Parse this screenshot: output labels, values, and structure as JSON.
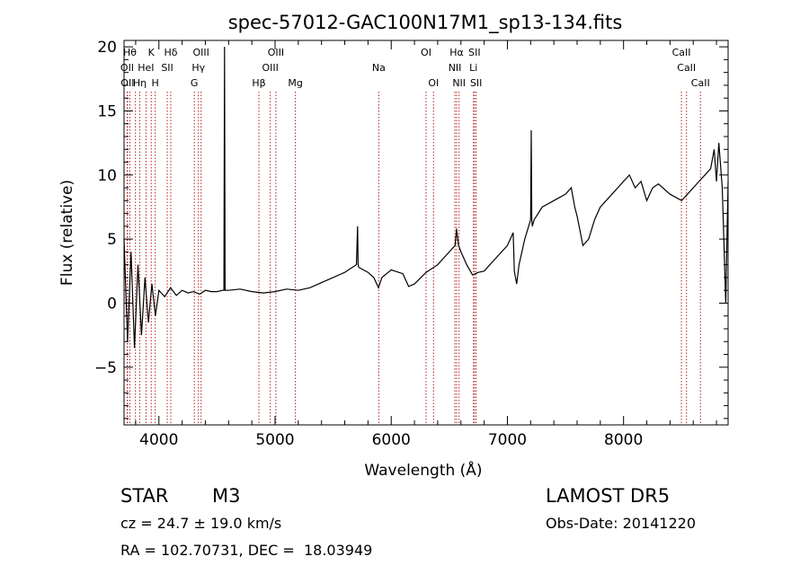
{
  "chart_data": {
    "type": "line",
    "title": "spec-57012-GAC100N17M1_sp13-134.fits",
    "xlabel": "Wavelength (Å)",
    "ylabel": "Flux (relative)",
    "xlim": [
      3700,
      8900
    ],
    "ylim": [
      -9.5,
      20.5
    ],
    "x_ticks": [
      4000,
      5000,
      6000,
      7000,
      8000
    ],
    "y_ticks": [
      -5,
      0,
      5,
      10,
      15,
      20
    ],
    "grid": false,
    "line_color": "#000000",
    "marker_color": "#b22222",
    "series": [
      {
        "x": [
          3700,
          3730,
          3760,
          3790,
          3820,
          3850,
          3880,
          3910,
          3940,
          3970,
          4000,
          4050,
          4100,
          4150,
          4200,
          4250,
          4300,
          4350,
          4400,
          4450,
          4500,
          4550,
          4560,
          4565,
          4570,
          4600,
          4700,
          4800,
          4900,
          5000,
          5100,
          5200,
          5300,
          5400,
          5500,
          5600,
          5650,
          5700,
          5710,
          5715,
          5720,
          5800,
          5850,
          5890,
          5920,
          6000,
          6100,
          6150,
          6200,
          6300,
          6400,
          6500,
          6550,
          6562,
          6580,
          6600,
          6650,
          6700,
          6750,
          6800,
          6900,
          7000,
          7050,
          7060,
          7080,
          7100,
          7150,
          7200,
          7205,
          7210,
          7215,
          7230,
          7300,
          7400,
          7500,
          7550,
          7580,
          7600,
          7650,
          7700,
          7750,
          7800,
          7900,
          8000,
          8050,
          8100,
          8150,
          8200,
          8250,
          8300,
          8400,
          8500,
          8550,
          8600,
          8650,
          8700,
          8750,
          8780,
          8800,
          8820,
          8850,
          8880,
          8900
        ],
        "y": [
          5.0,
          -3.0,
          4.0,
          -3.5,
          3.0,
          -2.5,
          2.0,
          -1.5,
          1.5,
          -1.0,
          1.0,
          0.5,
          1.2,
          0.6,
          1.0,
          0.8,
          0.9,
          0.7,
          1.0,
          0.9,
          0.9,
          1.0,
          1.0,
          20.0,
          1.0,
          1.0,
          1.1,
          0.9,
          0.8,
          0.9,
          1.1,
          1.0,
          1.2,
          1.6,
          2.0,
          2.4,
          2.7,
          3.0,
          6.0,
          3.0,
          2.8,
          2.4,
          2.0,
          1.2,
          2.0,
          2.6,
          2.3,
          1.3,
          1.5,
          2.4,
          3.0,
          4.0,
          4.5,
          5.8,
          4.5,
          4.0,
          3.0,
          2.2,
          2.4,
          2.5,
          3.5,
          4.5,
          5.5,
          2.5,
          1.5,
          3.0,
          5.0,
          6.5,
          13.5,
          6.5,
          6.0,
          6.5,
          7.5,
          8.0,
          8.5,
          9.0,
          7.5,
          6.8,
          4.5,
          5.0,
          6.5,
          7.5,
          8.5,
          9.5,
          10.0,
          9.0,
          9.5,
          8.0,
          9.0,
          9.3,
          8.5,
          8.0,
          8.5,
          9.0,
          9.5,
          10.0,
          10.5,
          12.0,
          9.5,
          12.5,
          9.0,
          0.0,
          9.5
        ]
      }
    ],
    "lines": [
      {
        "x": 3750,
        "tier": 0,
        "label": "Hθ"
      },
      {
        "x": 3727,
        "tier": 1,
        "label": "OII"
      },
      {
        "x": 3730,
        "tier": 2,
        "label": "OII"
      },
      {
        "x": 3798,
        "tier": 0,
        "label": ""
      },
      {
        "x": 3835,
        "tier": 2,
        "label": "Hη"
      },
      {
        "x": 3889,
        "tier": 1,
        "label": "HeI"
      },
      {
        "x": 3934,
        "tier": 0,
        "label": "K"
      },
      {
        "x": 3968,
        "tier": 2,
        "label": "H"
      },
      {
        "x": 4072,
        "tier": 1,
        "label": "SII"
      },
      {
        "x": 4102,
        "tier": 0,
        "label": "Hδ"
      },
      {
        "x": 4305,
        "tier": 2,
        "label": "G"
      },
      {
        "x": 4340,
        "tier": 1,
        "label": "Hγ"
      },
      {
        "x": 4363,
        "tier": 0,
        "label": "OIII"
      },
      {
        "x": 4861,
        "tier": 2,
        "label": "Hβ"
      },
      {
        "x": 4959,
        "tier": 1,
        "label": "OIII"
      },
      {
        "x": 5007,
        "tier": 0,
        "label": "OIII"
      },
      {
        "x": 5175,
        "tier": 2,
        "label": "Mg"
      },
      {
        "x": 5893,
        "tier": 1,
        "label": "Na"
      },
      {
        "x": 6300,
        "tier": 0,
        "label": "OI"
      },
      {
        "x": 6364,
        "tier": 2,
        "label": "OI"
      },
      {
        "x": 6548,
        "tier": 1,
        "label": "NII"
      },
      {
        "x": 6563,
        "tier": 0,
        "label": "Hα"
      },
      {
        "x": 6584,
        "tier": 2,
        "label": "NII"
      },
      {
        "x": 6708,
        "tier": 1,
        "label": "Li"
      },
      {
        "x": 6717,
        "tier": 0,
        "label": "SII"
      },
      {
        "x": 6731,
        "tier": 2,
        "label": "SII"
      },
      {
        "x": 8498,
        "tier": 0,
        "label": "CaII"
      },
      {
        "x": 8542,
        "tier": 1,
        "label": "CaII"
      },
      {
        "x": 8662,
        "tier": 2,
        "label": "CaII"
      }
    ]
  },
  "info": {
    "object_class": "STAR",
    "subclass": "M3",
    "survey": "LAMOST DR5",
    "velocity": "cz = 24.7 ± 19.0 km/s",
    "obs_date": "Obs-Date: 20141220",
    "coords": "RA = 102.70731, DEC =  18.03949"
  }
}
